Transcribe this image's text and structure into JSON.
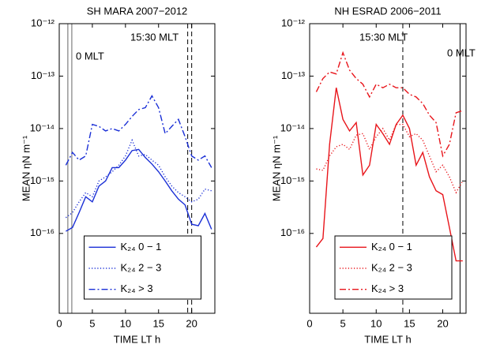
{
  "chart_data": [
    {
      "type": "line",
      "title": "SH MARA 2007−2012",
      "xlabel": "TIME LT h",
      "ylabel": "MEAN ηN  m⁻¹",
      "log_y": true,
      "legend": "lower center",
      "xlim": [
        0,
        23.5
      ],
      "xticks": [
        0,
        5,
        10,
        15,
        20
      ],
      "ylim": [
        3e-18,
        1e-12
      ],
      "yticks": [
        {
          "value": 1e-16,
          "label": "10⁻¹⁶"
        },
        {
          "value": 1e-15,
          "label": "10⁻¹⁵"
        },
        {
          "value": 1e-14,
          "label": "10⁻¹⁴"
        },
        {
          "value": 1e-13,
          "label": "10⁻¹³"
        },
        {
          "value": 1e-12,
          "label": "10⁻¹²"
        }
      ],
      "annotations": [
        "0 MLT",
        "15:30 MLT"
      ],
      "vlines": [
        {
          "x": 1.3,
          "dash": "solid",
          "color": "#666666"
        },
        {
          "x": 1.9,
          "dash": "solid",
          "color": "#666666"
        },
        {
          "x": 19.4,
          "dash": "dashed",
          "color": "#000000"
        },
        {
          "x": 20.0,
          "dash": "dashed",
          "color": "#000000"
        }
      ],
      "x": [
        1,
        2,
        3,
        4,
        5,
        6,
        7,
        8,
        9,
        10,
        11,
        12,
        13,
        14,
        15,
        16,
        17,
        18,
        19,
        20,
        21,
        22,
        23
      ],
      "series": [
        {
          "name": "K₂₄ 0 − 1",
          "color": "#1a2fd6",
          "dash": "solid",
          "values": [
            1.1e-16,
            1.3e-16,
            2.5e-16,
            5e-16,
            4e-16,
            8e-16,
            1e-15,
            1.8e-15,
            1.8e-15,
            2.5e-15,
            3.8e-15,
            4e-15,
            2.8e-15,
            2.1e-15,
            1.5e-15,
            1e-15,
            6.5e-16,
            4.5e-16,
            3.5e-16,
            1.5e-16,
            1.4e-16,
            2.4e-16,
            1.2e-16
          ]
        },
        {
          "name": "K₂₄ 2 − 3",
          "color": "#1a2fd6",
          "dash": "dotted",
          "values": [
            2e-16,
            2.5e-16,
            4e-16,
            6e-16,
            5e-16,
            1e-15,
            1.2e-15,
            1.5e-15,
            2e-15,
            3e-15,
            6e-15,
            3e-15,
            3.2e-15,
            2.5e-15,
            2e-15,
            1.2e-15,
            8e-16,
            6e-16,
            5e-16,
            4e-16,
            4.5e-16,
            7e-16,
            6.5e-16
          ]
        },
        {
          "name": "K₂₄ > 3",
          "color": "#1a2fd6",
          "dash": "dashdot",
          "values": [
            2e-15,
            3.5e-15,
            2.5e-15,
            3e-15,
            1.2e-14,
            1.1e-14,
            9e-15,
            1e-14,
            9e-15,
            1.2e-14,
            1.7e-14,
            2.3e-14,
            2.5e-14,
            4.2e-14,
            2.5e-14,
            8e-15,
            1.1e-14,
            1.5e-14,
            7e-15,
            3e-15,
            2.5e-15,
            3e-15,
            1.8e-15
          ]
        }
      ]
    },
    {
      "type": "line",
      "title": "NH ESRAD 2006−2011",
      "xlabel": "TIME LT h",
      "ylabel": "MEAN ηN  m⁻¹",
      "log_y": true,
      "legend": "lower center",
      "xlim": [
        0,
        23.5
      ],
      "xticks": [
        0,
        5,
        10,
        15,
        20
      ],
      "ylim": [
        3e-18,
        1e-12
      ],
      "yticks": [
        {
          "value": 1e-16,
          "label": "10⁻¹⁶"
        },
        {
          "value": 1e-15,
          "label": "10⁻¹⁵"
        },
        {
          "value": 1e-14,
          "label": "10⁻¹⁴"
        },
        {
          "value": 1e-13,
          "label": "10⁻¹³"
        },
        {
          "value": 1e-12,
          "label": "10⁻¹²"
        }
      ],
      "annotations": [
        "15:30 MLT",
        "0 MLT"
      ],
      "vlines": [
        {
          "x": 14.0,
          "dash": "dashed",
          "color": "#000000"
        },
        {
          "x": 22.6,
          "dash": "solid",
          "color": "#000000"
        }
      ],
      "x": [
        1,
        2,
        3,
        4,
        5,
        6,
        7,
        8,
        9,
        10,
        11,
        12,
        13,
        14,
        15,
        16,
        17,
        18,
        19,
        20,
        21,
        22,
        23
      ],
      "series": [
        {
          "name": "K₂₄ 0 − 1",
          "color": "#e8151b",
          "dash": "solid",
          "values": [
            5.5e-17,
            8e-17,
            5e-15,
            6e-14,
            1.5e-14,
            9e-15,
            1.3e-14,
            1.3e-15,
            2e-15,
            1.2e-14,
            8e-15,
            5e-15,
            1.2e-14,
            1.8e-14,
            1e-14,
            2e-15,
            3.5e-15,
            1.2e-15,
            6.5e-16,
            5.5e-16,
            1.3e-16,
            3e-17,
            3e-17
          ]
        },
        {
          "name": "K₂₄ 2 − 3",
          "color": "#e8151b",
          "dash": "dotted",
          "values": [
            1.7e-15,
            1.6e-15,
            3e-15,
            4.5e-15,
            5e-15,
            4e-15,
            7.5e-15,
            8e-15,
            4e-15,
            7e-15,
            1e-14,
            6e-15,
            1.2e-14,
            1.2e-14,
            7e-15,
            8e-15,
            6e-15,
            3e-15,
            1.5e-15,
            2e-15,
            1.2e-15,
            6e-16,
            1e-15
          ]
        },
        {
          "name": "K₂₄ > 3",
          "color": "#e8151b",
          "dash": "dashdot",
          "values": [
            5e-14,
            9e-14,
            1.2e-13,
            1.1e-13,
            2.8e-13,
            1.3e-13,
            9e-14,
            7e-14,
            4e-14,
            7e-14,
            6e-14,
            7e-14,
            6e-14,
            6e-14,
            4.5e-14,
            4e-14,
            3e-14,
            1.8e-14,
            1.3e-14,
            3e-15,
            5e-15,
            2e-14,
            2.2e-14
          ]
        }
      ]
    }
  ]
}
